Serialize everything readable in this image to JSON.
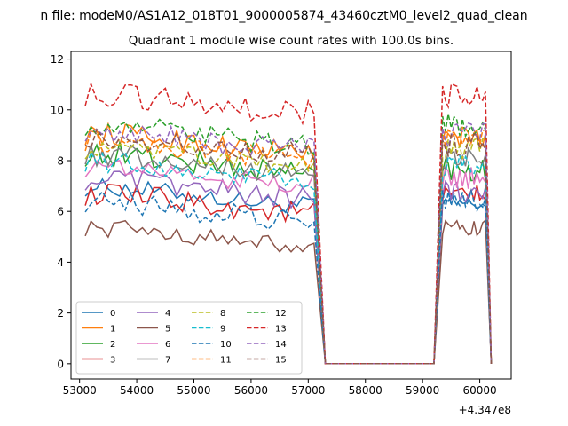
{
  "figure": {
    "suptitle": "n file: modeM0/AS1A12_018T01_9000005874_43460cztM0_level2_quad_clean",
    "title": "Quadrant 1 module wise count rates with 100.0s bins.",
    "offset_text": "+4.347e8"
  },
  "chart_data": {
    "type": "line",
    "title": "Quadrant 1 module wise count rates with 100.0s bins.",
    "xlabel": "",
    "ylabel": "",
    "x_offset": 434700000,
    "xlim": [
      52850,
      60550
    ],
    "ylim": [
      -0.6,
      12.3
    ],
    "xticks": [
      53000,
      54000,
      55000,
      56000,
      57000,
      58000,
      59000,
      60000
    ],
    "xtick_labels": [
      "53000",
      "54000",
      "55000",
      "56000",
      "57000",
      "58000",
      "59000",
      "60000"
    ],
    "yticks": [
      0,
      2,
      4,
      6,
      8,
      10,
      12
    ],
    "ytick_labels": [
      "0",
      "2",
      "4",
      "6",
      "8",
      "10",
      "12"
    ],
    "grid": false,
    "legend_placement": "lower-left",
    "legend_columns": 4,
    "active_segments": [
      [
        53100,
        57100
      ],
      [
        59350,
        60100
      ]
    ],
    "gap": {
      "start": 57300,
      "end": 59200,
      "value": 0
    },
    "series": [
      {
        "name": "0",
        "color": "#1f77b4",
        "dash": "solid",
        "level1": 6.6,
        "level2": 6.3,
        "amp": 0.35
      },
      {
        "name": "1",
        "color": "#ff7f0e",
        "dash": "solid",
        "level1": 8.7,
        "level2": 8.9,
        "amp": 0.45
      },
      {
        "name": "2",
        "color": "#2ca02c",
        "dash": "solid",
        "level1": 7.9,
        "level2": 7.7,
        "amp": 0.5
      },
      {
        "name": "3",
        "color": "#d62728",
        "dash": "solid",
        "level1": 6.3,
        "level2": 6.6,
        "amp": 0.45
      },
      {
        "name": "4",
        "color": "#9467bd",
        "dash": "solid",
        "level1": 6.9,
        "level2": 6.8,
        "amp": 0.45
      },
      {
        "name": "5",
        "color": "#8c564b",
        "dash": "solid",
        "level1": 5.0,
        "level2": 5.3,
        "amp": 0.35
      },
      {
        "name": "6",
        "color": "#e377c2",
        "dash": "solid",
        "level1": 7.4,
        "level2": 7.3,
        "amp": 0.45
      },
      {
        "name": "7",
        "color": "#7f7f7f",
        "dash": "solid",
        "level1": 7.9,
        "level2": 8.1,
        "amp": 0.45
      },
      {
        "name": "8",
        "color": "#bcbd22",
        "dash": "dashed",
        "level1": 8.1,
        "level2": 8.5,
        "amp": 0.45
      },
      {
        "name": "9",
        "color": "#17becf",
        "dash": "dashed",
        "level1": 7.6,
        "level2": 7.8,
        "amp": 0.45
      },
      {
        "name": "10",
        "color": "#1f77b4",
        "dash": "dashed",
        "level1": 6.0,
        "level2": 6.4,
        "amp": 0.45
      },
      {
        "name": "11",
        "color": "#ff7f0e",
        "dash": "dashed",
        "level1": 8.4,
        "level2": 8.8,
        "amp": 0.45
      },
      {
        "name": "12",
        "color": "#2ca02c",
        "dash": "dashed",
        "level1": 9.0,
        "level2": 9.4,
        "amp": 0.45
      },
      {
        "name": "13",
        "color": "#d62728",
        "dash": "dashed",
        "level1": 10.2,
        "level2": 10.6,
        "amp": 0.5
      },
      {
        "name": "14",
        "color": "#9467bd",
        "dash": "dashed",
        "level1": 8.8,
        "level2": 9.0,
        "amp": 0.5
      },
      {
        "name": "15",
        "color": "#8c564b",
        "dash": "dashed",
        "level1": 8.6,
        "level2": 8.6,
        "amp": 0.45
      }
    ]
  }
}
